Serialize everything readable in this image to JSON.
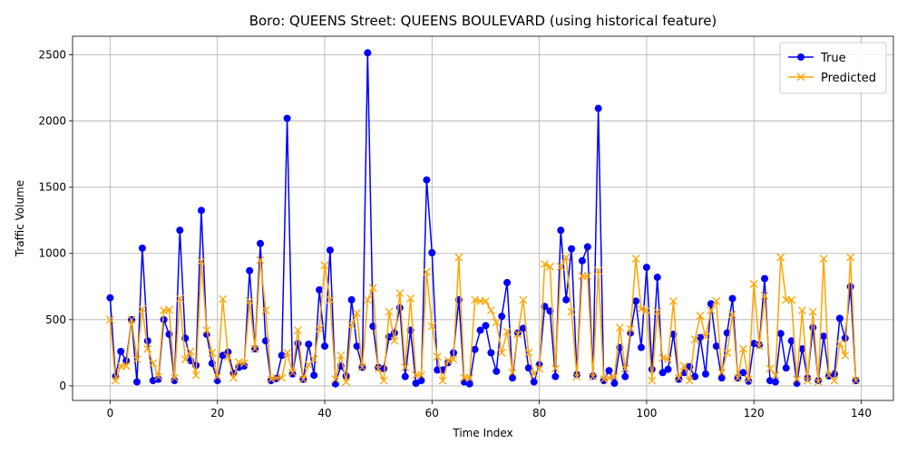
{
  "chart_data": {
    "type": "line",
    "title": "Boro: QUEENS Street: QUEENS BOULEVARD (using historical feature)",
    "xlabel": "Time Index",
    "ylabel": "Traffic Volume",
    "xlim": [
      -7,
      146
    ],
    "ylim": [
      -110,
      2640
    ],
    "xticks": [
      0,
      20,
      40,
      60,
      80,
      100,
      120,
      140
    ],
    "yticks": [
      0,
      500,
      1000,
      1500,
      2000,
      2500
    ],
    "grid": true,
    "legend_position": "top-right",
    "series": [
      {
        "name": "True",
        "color": "#0000ff",
        "marker": "circle",
        "values": [
          665,
          70,
          260,
          190,
          500,
          30,
          1040,
          340,
          40,
          50,
          500,
          390,
          40,
          1175,
          360,
          190,
          155,
          1325,
          390,
          170,
          40,
          230,
          255,
          95,
          140,
          150,
          870,
          280,
          1075,
          340,
          40,
          55,
          230,
          2020,
          90,
          320,
          50,
          315,
          80,
          725,
          300,
          1025,
          15,
          150,
          75,
          650,
          300,
          140,
          2515,
          450,
          140,
          130,
          370,
          400,
          590,
          70,
          420,
          20,
          40,
          1555,
          1005,
          120,
          120,
          175,
          250,
          650,
          30,
          15,
          275,
          420,
          455,
          250,
          110,
          525,
          780,
          60,
          400,
          435,
          135,
          30,
          160,
          600,
          565,
          70,
          1175,
          650,
          1035,
          85,
          945,
          1050,
          75,
          2095,
          40,
          115,
          20,
          290,
          70,
          400,
          640,
          290,
          895,
          125,
          820,
          100,
          125,
          390,
          50,
          100,
          145,
          70,
          365,
          90,
          620,
          300,
          60,
          400,
          660,
          60,
          100,
          35,
          320,
          310,
          810,
          40,
          30,
          395,
          135,
          340,
          20,
          280,
          60,
          440,
          40,
          375,
          75,
          90,
          510,
          360,
          750,
          40
        ]
      },
      {
        "name": "Predicted",
        "color": "#ffa500",
        "marker": "x",
        "values": [
          500,
          40,
          150,
          150,
          500,
          200,
          580,
          280,
          170,
          70,
          570,
          575,
          60,
          660,
          200,
          260,
          80,
          940,
          420,
          250,
          70,
          655,
          220,
          60,
          180,
          170,
          640,
          280,
          950,
          570,
          50,
          60,
          60,
          250,
          100,
          420,
          50,
          160,
          200,
          430,
          910,
          650,
          50,
          230,
          30,
          460,
          550,
          140,
          650,
          740,
          130,
          40,
          560,
          340,
          700,
          140,
          660,
          80,
          80,
          860,
          450,
          220,
          40,
          190,
          200,
          970,
          60,
          60,
          650,
          640,
          640,
          570,
          480,
          250,
          410,
          100,
          390,
          650,
          250,
          90,
          130,
          920,
          900,
          130,
          900,
          970,
          560,
          70,
          830,
          830,
          70,
          870,
          50,
          60,
          70,
          440,
          130,
          430,
          960,
          580,
          570,
          40,
          560,
          210,
          200,
          640,
          60,
          150,
          40,
          350,
          530,
          370,
          570,
          640,
          100,
          250,
          540,
          60,
          280,
          50,
          770,
          300,
          680,
          130,
          80,
          970,
          650,
          650,
          50,
          570,
          40,
          560,
          30,
          960,
          80,
          40,
          320,
          230,
          970,
          40
        ]
      }
    ]
  }
}
